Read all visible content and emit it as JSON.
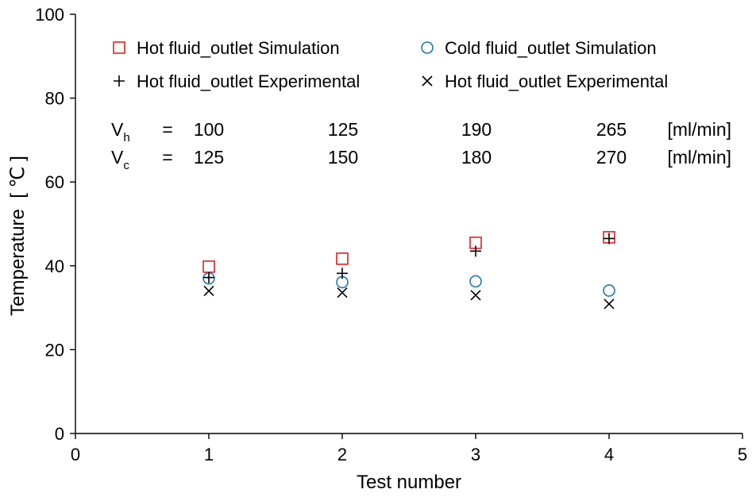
{
  "chart_data": {
    "type": "scatter",
    "xlabel": "Test number",
    "ylabel": "Temperature  [ ℃ ]",
    "xlim": [
      0,
      5
    ],
    "ylim": [
      0,
      100
    ],
    "xticks": [
      "0",
      "1",
      "2",
      "3",
      "4",
      "5"
    ],
    "yticks": [
      "0",
      "20",
      "40",
      "60",
      "80",
      "100"
    ],
    "grid": false,
    "legend_position": "top",
    "series": [
      {
        "name": "Hot fluid_outlet Simulation",
        "marker": "square",
        "color": "#e02020",
        "points": [
          [
            1,
            39.8
          ],
          [
            2,
            41.7
          ],
          [
            3,
            45.5
          ],
          [
            4,
            46.8
          ]
        ]
      },
      {
        "name": "Cold fluid_outlet Simulation",
        "marker": "circle",
        "color": "#1f77b4",
        "points": [
          [
            1,
            37.0
          ],
          [
            2,
            36.1
          ],
          [
            3,
            36.3
          ],
          [
            4,
            34.1
          ]
        ]
      },
      {
        "name": "Hot fluid_outlet Experimental",
        "marker": "plus",
        "color": "#000000",
        "points": [
          [
            1,
            37.2
          ],
          [
            2,
            38.2
          ],
          [
            3,
            43.5
          ],
          [
            4,
            46.5
          ]
        ]
      },
      {
        "name": "Hot fluid_outlet Experimental",
        "marker": "x",
        "color": "#000000",
        "points": [
          [
            1,
            34.0
          ],
          [
            2,
            33.6
          ],
          [
            3,
            33.0
          ],
          [
            4,
            30.9
          ]
        ]
      }
    ],
    "annotation": {
      "rows": [
        {
          "symbol": "V",
          "sub": "h",
          "eq": "=",
          "values": [
            "100",
            "125",
            "190",
            "265"
          ],
          "unit": "[ml/min]"
        },
        {
          "symbol": "V",
          "sub": "c",
          "eq": "=",
          "values": [
            "125",
            "150",
            "180",
            "270"
          ],
          "unit": "[ml/min]"
        }
      ]
    }
  }
}
